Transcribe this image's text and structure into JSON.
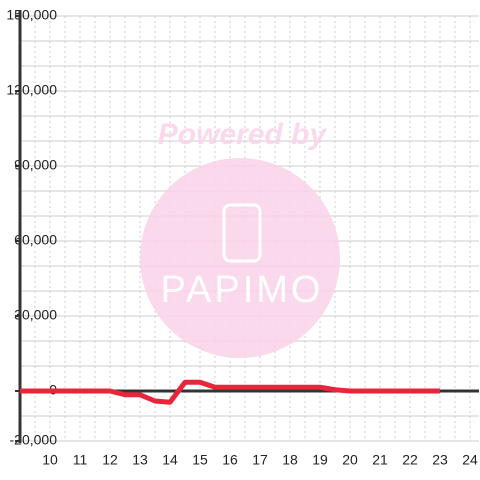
{
  "chart_data": {
    "type": "line",
    "annotations": [
      "Powered by",
      "PAPIMO"
    ],
    "x": [
      9,
      10,
      11,
      12,
      12.5,
      13,
      13.5,
      14,
      14.5,
      15,
      15.5,
      16,
      17,
      18,
      19,
      19.5,
      20,
      21,
      22,
      23
    ],
    "values": [
      0,
      0,
      0,
      0,
      -1500,
      -1500,
      -4000,
      -4500,
      3500,
      3500,
      1500,
      1500,
      1500,
      1500,
      1500,
      500,
      0,
      0,
      0,
      0
    ],
    "color": "#e8253a",
    "xlim": [
      9,
      24.3
    ],
    "xticks": [
      10,
      11,
      12,
      13,
      14,
      15,
      16,
      17,
      18,
      19,
      20,
      21,
      22,
      23,
      24
    ],
    "xminorticks": [
      9.5,
      10.5,
      11.5,
      12.5,
      13.5,
      14.5,
      15.5,
      16.5,
      17.5,
      18.5,
      19.5,
      20.5,
      21.5,
      22.5,
      23.5
    ],
    "ylim": [
      -20000,
      150000
    ],
    "yticks": [
      {
        "value": -20000,
        "label": "-20,000"
      },
      {
        "value": 0,
        "label": "0"
      },
      {
        "value": 30000,
        "label": "30,000"
      },
      {
        "value": 60000,
        "label": "60,000"
      },
      {
        "value": 90000,
        "label": "90,000"
      },
      {
        "value": 120000,
        "label": "120,000"
      },
      {
        "value": 150000,
        "label": "150,000"
      }
    ],
    "yminorticks": [
      -10000,
      10000,
      20000,
      40000,
      50000,
      70000,
      80000,
      100000,
      110000,
      130000,
      140000
    ],
    "grid": true
  }
}
